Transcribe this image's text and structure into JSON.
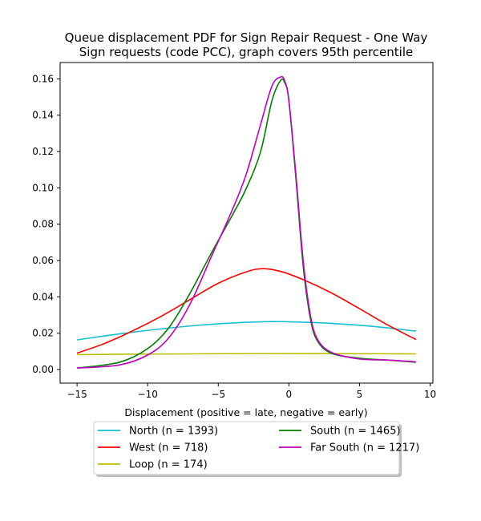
{
  "chart_data": {
    "type": "line",
    "title_line1": "Queue displacement PDF for Sign Repair Request - One Way",
    "title_line2": "Sign  requests (code PCC), graph covers 95th percentile",
    "xlabel": "Displacement (positive = late, negative = early)",
    "ylabel": "",
    "xlim": [
      -16.2,
      10.2
    ],
    "ylim": [
      -0.0075,
      0.169
    ],
    "xticks": [
      -15,
      -10,
      -5,
      0,
      5,
      10
    ],
    "xtick_labels": [
      "−15",
      "−10",
      "−5",
      "0",
      "5",
      "10"
    ],
    "yticks": [
      0.0,
      0.02,
      0.04,
      0.06,
      0.08,
      0.1,
      0.12,
      0.14,
      0.16
    ],
    "ytick_labels": [
      "0.00",
      "0.02",
      "0.04",
      "0.06",
      "0.08",
      "0.10",
      "0.12",
      "0.14",
      "0.16"
    ],
    "grid": false,
    "legend_position": "below",
    "legend_columns": 2,
    "series": [
      {
        "name": "North (n = 1393)",
        "color": "#17becf",
        "x": [
          -15,
          -12,
          -9,
          -6,
          -3,
          -1,
          0,
          3,
          6,
          9
        ],
        "y": [
          0.0163,
          0.0196,
          0.0224,
          0.0246,
          0.026,
          0.0264,
          0.0263,
          0.0254,
          0.0237,
          0.0211
        ]
      },
      {
        "name": "West (n = 718)",
        "color": "#ff0000",
        "x": [
          -15,
          -13,
          -11,
          -9,
          -7,
          -5,
          -3,
          -1.8,
          -0.5,
          1,
          3,
          5,
          7,
          9
        ],
        "y": [
          0.009,
          0.0145,
          0.0215,
          0.0295,
          0.0385,
          0.0475,
          0.0538,
          0.0555,
          0.0538,
          0.0495,
          0.0422,
          0.0335,
          0.0245,
          0.0165
        ]
      },
      {
        "name": "Loop (n = 174)",
        "color": "#bcbd00",
        "x": [
          -15,
          -10,
          -5,
          0,
          5,
          9
        ],
        "y": [
          0.0082,
          0.0085,
          0.0087,
          0.0088,
          0.0087,
          0.0086
        ]
      },
      {
        "name": "South (n = 1465)",
        "color": "#008000",
        "x": [
          -15,
          -12,
          -10,
          -8.5,
          -7,
          -5.5,
          -4,
          -3,
          -2,
          -1.2,
          -0.6,
          -0.3,
          0,
          0.5,
          1,
          1.5,
          2,
          3,
          5,
          7,
          9
        ],
        "y": [
          0.0008,
          0.004,
          0.0115,
          0.023,
          0.042,
          0.064,
          0.085,
          0.1,
          0.12,
          0.148,
          0.159,
          0.158,
          0.148,
          0.105,
          0.058,
          0.029,
          0.016,
          0.009,
          0.0062,
          0.0052,
          0.004
        ]
      },
      {
        "name": "Far South (n = 1217)",
        "color": "#bf00bf",
        "x": [
          -15,
          -12,
          -10,
          -8.5,
          -7,
          -5.5,
          -4,
          -3,
          -2,
          -1.2,
          -0.6,
          -0.3,
          0,
          0.5,
          1,
          1.5,
          2,
          3,
          5,
          7,
          9
        ],
        "y": [
          0.0008,
          0.0025,
          0.008,
          0.0175,
          0.036,
          0.062,
          0.088,
          0.108,
          0.135,
          0.156,
          0.161,
          0.159,
          0.148,
          0.107,
          0.061,
          0.031,
          0.017,
          0.0095,
          0.0058,
          0.0052,
          0.0042
        ]
      }
    ]
  }
}
